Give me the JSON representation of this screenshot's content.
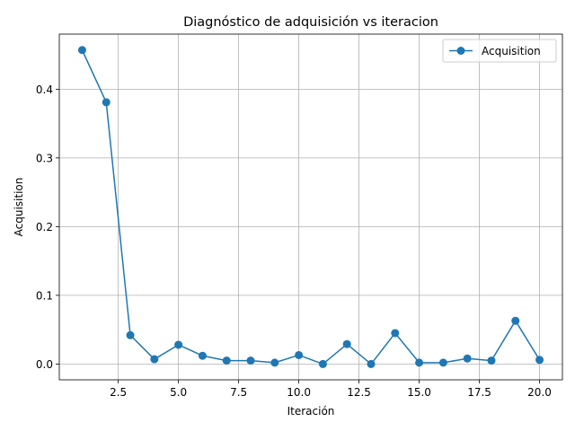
{
  "chart_data": {
    "type": "line",
    "title": "Diagnóstico de adquisición vs iteracion",
    "xlabel": "Iteración",
    "ylabel": "Acquisition",
    "xlim": [
      0.05,
      20.95
    ],
    "ylim": [
      -0.023,
      0.4802
    ],
    "xticks": [
      2.5,
      5.0,
      7.5,
      10.0,
      12.5,
      15.0,
      17.5,
      20.0
    ],
    "xtick_labels": [
      "2.5",
      "5.0",
      "7.5",
      "10.0",
      "12.5",
      "15.0",
      "17.5",
      "20.0"
    ],
    "yticks": [
      0.0,
      0.1,
      0.2,
      0.3,
      0.4
    ],
    "ytick_labels": [
      "0.0",
      "0.1",
      "0.2",
      "0.3",
      "0.4"
    ],
    "grid": true,
    "legend_position": "top-right",
    "series": [
      {
        "name": "Acquisition",
        "color": "#1f77b4",
        "marker": "circle",
        "x": [
          1,
          2,
          3,
          4,
          5,
          6,
          7,
          8,
          9,
          10,
          11,
          12,
          13,
          14,
          15,
          16,
          17,
          18,
          19,
          20
        ],
        "y": [
          0.457,
          0.381,
          0.042,
          0.007,
          0.028,
          0.012,
          0.005,
          0.005,
          0.002,
          0.013,
          0.0,
          0.029,
          0.0,
          0.045,
          0.002,
          0.002,
          0.008,
          0.005,
          0.063,
          0.006
        ]
      }
    ]
  }
}
